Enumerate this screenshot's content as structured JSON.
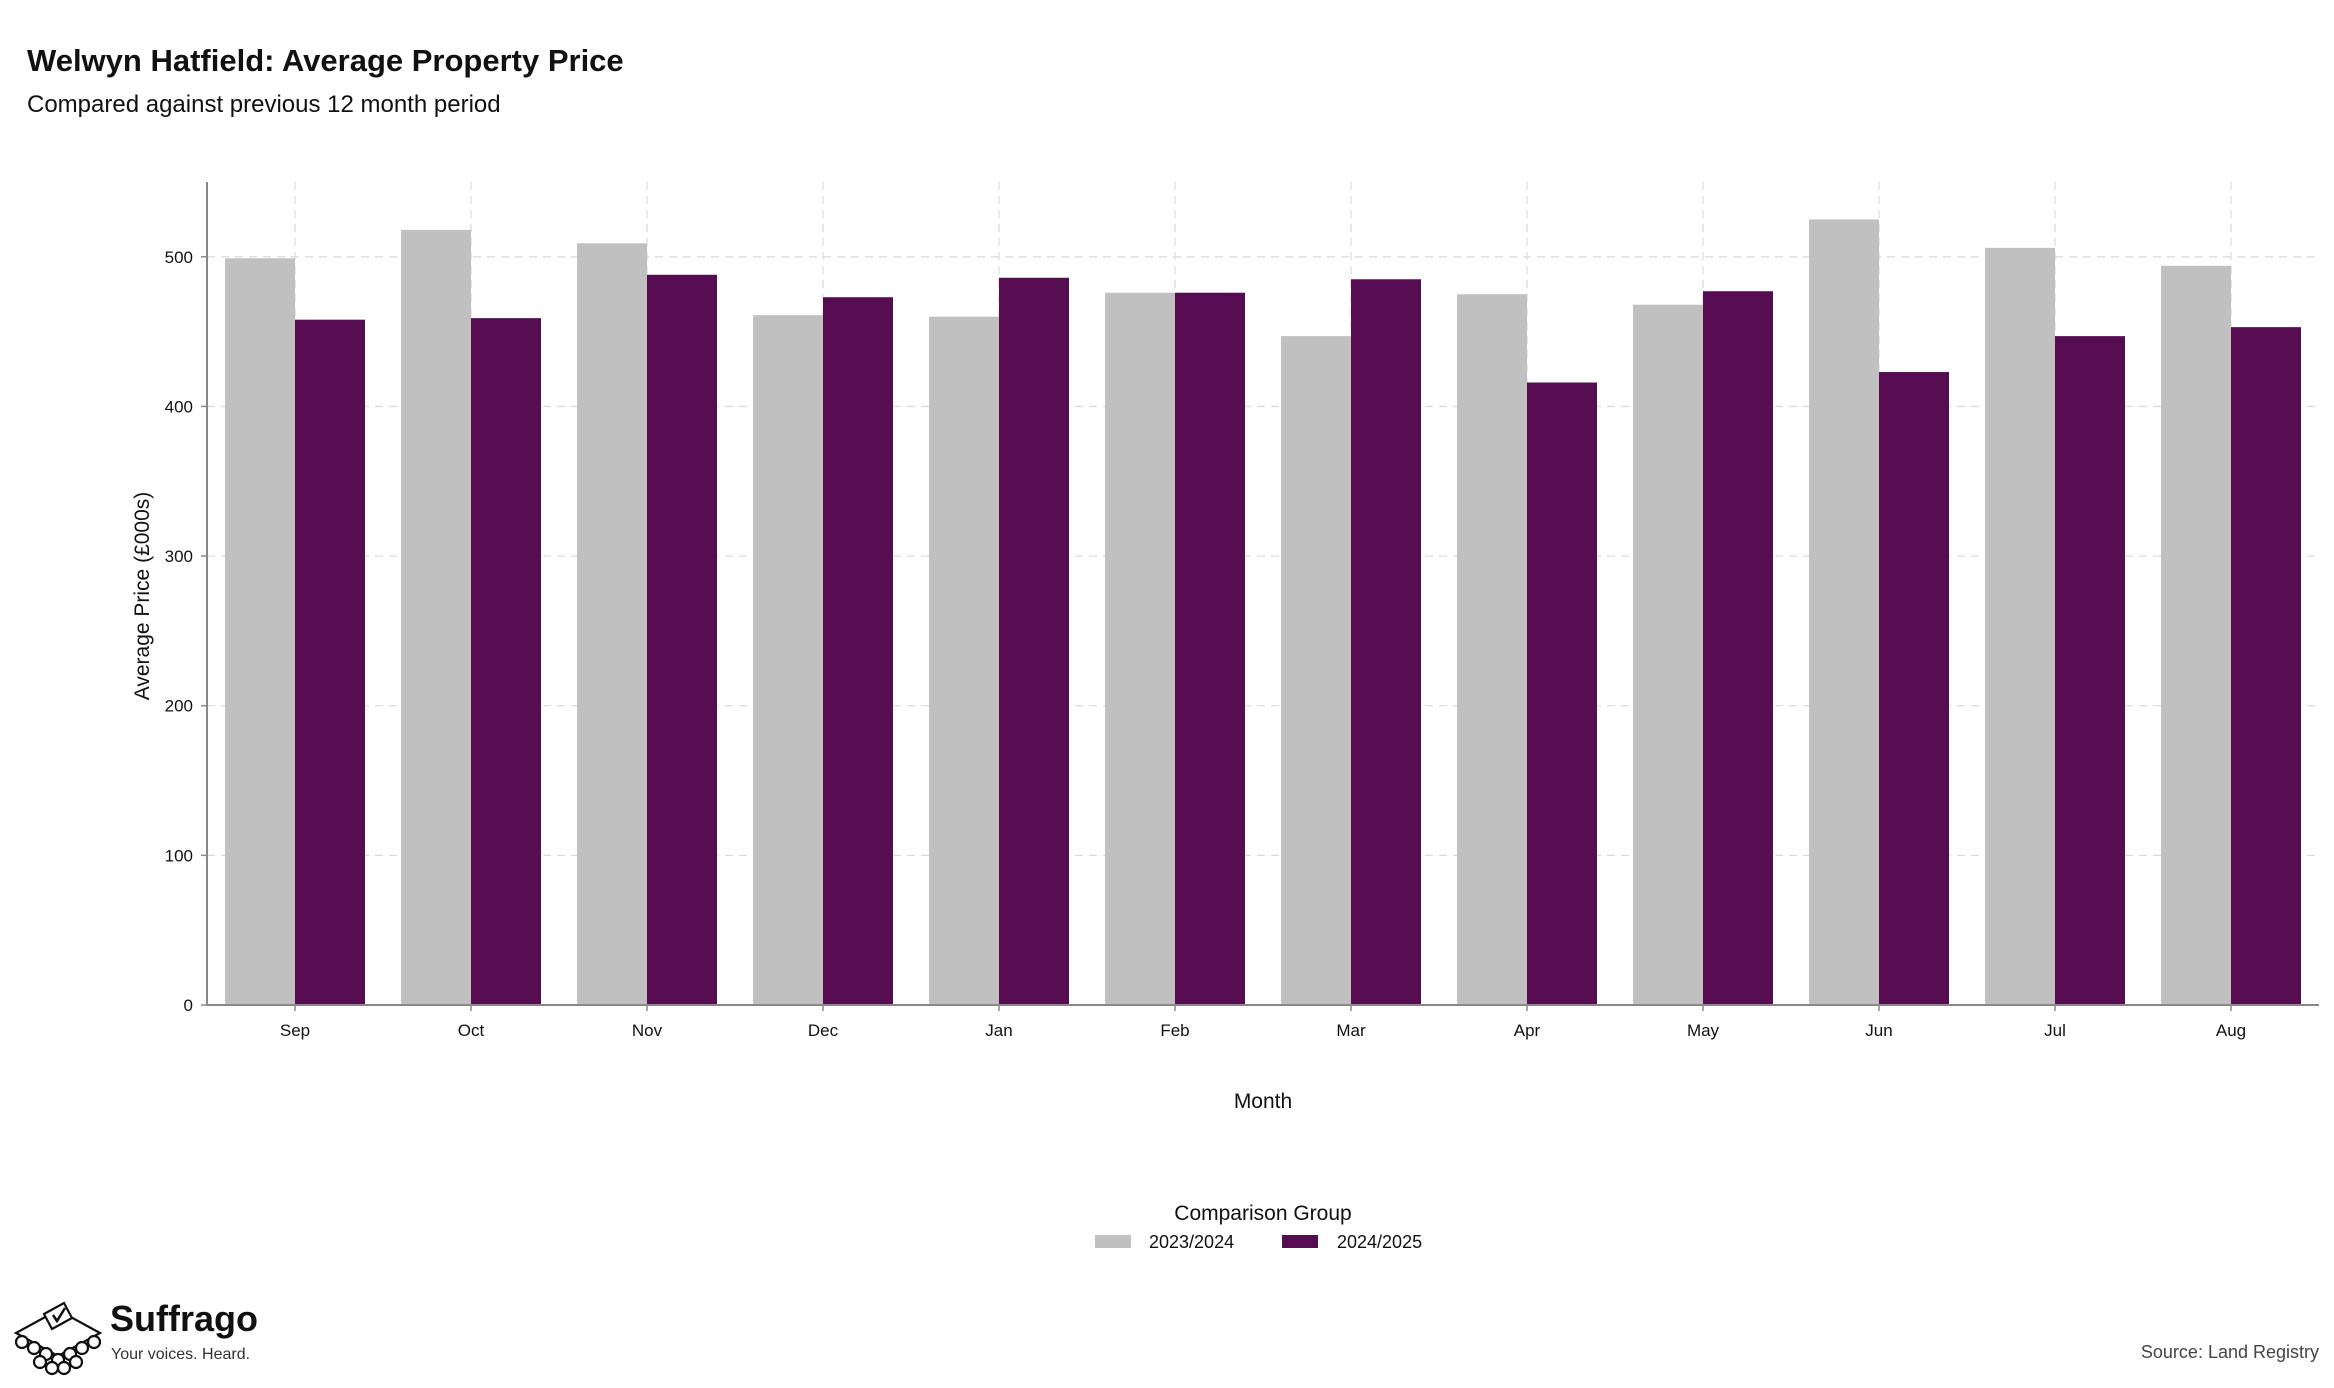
{
  "header": {
    "title": "Welwyn Hatfield: Average Property Price",
    "subtitle": "Compared against previous 12 month period"
  },
  "chart_data": {
    "type": "bar",
    "title": "Welwyn Hatfield: Average Property Price",
    "subtitle": "Compared against previous 12 month period",
    "xlabel": "Month",
    "ylabel": "Average Price (£000s)",
    "categories": [
      "Sep",
      "Oct",
      "Nov",
      "Dec",
      "Jan",
      "Feb",
      "Mar",
      "Apr",
      "May",
      "Jun",
      "Jul",
      "Aug"
    ],
    "series": [
      {
        "name": "2023/2024",
        "color": "#c0c0c0",
        "values": [
          499,
          518,
          509,
          461,
          460,
          476,
          447,
          475,
          468,
          525,
          506,
          494
        ]
      },
      {
        "name": "2024/2025",
        "color": "#560c51",
        "values": [
          458,
          459,
          488,
          473,
          486,
          476,
          485,
          416,
          477,
          423,
          447,
          453
        ]
      }
    ],
    "ylim": [
      0,
      550
    ],
    "yticks": [
      0,
      100,
      200,
      300,
      400,
      500
    ],
    "grid": true,
    "legend": {
      "title": "Comparison Group",
      "position": "bottom"
    }
  },
  "brand": {
    "name": "Suffrago",
    "tagline": "Your voices. Heard.",
    "logo_icon": "ballot-box-icon"
  },
  "footer": {
    "source": "Source: Land Registry"
  }
}
